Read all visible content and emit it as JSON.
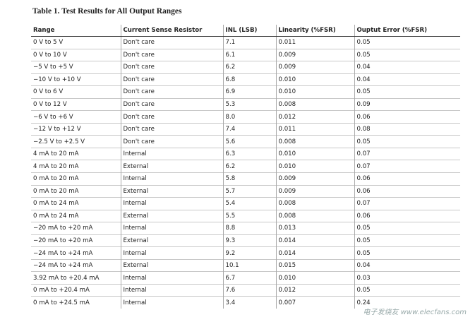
{
  "title": "Table 1. Test Results for All Output Ranges",
  "table": {
    "header": [
      "Range",
      "Current Sense Resistor",
      "INL (LSB)",
      "Linearity (%FSR)",
      "Ouptut Error (%FSR)"
    ],
    "rows": [
      [
        "0 V to 5 V",
        "Don't care",
        "7.1",
        "0.011",
        "0.05"
      ],
      [
        "0 V to 10 V",
        "Don't care",
        "6.1",
        "0.009",
        "0.05"
      ],
      [
        "−5 V to +5 V",
        "Don't care",
        "6.2",
        "0.009",
        "0.04"
      ],
      [
        "−10 V to +10 V",
        "Don't care",
        "6.8",
        "0.010",
        "0.04"
      ],
      [
        "0 V to 6 V",
        "Don't care",
        "6.9",
        "0.010",
        "0.05"
      ],
      [
        "0 V to 12 V",
        "Don't care",
        "5.3",
        "0.008",
        "0.09"
      ],
      [
        "−6 V to +6 V",
        "Don't care",
        "8.0",
        "0.012",
        "0.06"
      ],
      [
        "−12 V to +12 V",
        "Don't care",
        "7.4",
        "0.011",
        "0.08"
      ],
      [
        "−2.5 V to +2.5 V",
        "Don't care",
        "5.6",
        "0.008",
        "0.05"
      ],
      [
        "4 mA to 20 mA",
        "Internal",
        "6.3",
        "0.010",
        "0.07"
      ],
      [
        "4 mA to 20 mA",
        "External",
        "6.2",
        "0.010",
        "0.07"
      ],
      [
        "0 mA to 20 mA",
        "Internal",
        "5.8",
        "0.009",
        "0.06"
      ],
      [
        "0 mA to 20 mA",
        "External",
        "5.7",
        "0.009",
        "0.06"
      ],
      [
        "0 mA to 24 mA",
        "Internal",
        "5.4",
        "0.008",
        "0.07"
      ],
      [
        "0 mA to 24 mA",
        "External",
        "5.5",
        "0.008",
        "0.06"
      ],
      [
        "−20 mA to +20 mA",
        "Internal",
        "8.8",
        "0.013",
        "0.05"
      ],
      [
        "−20 mA to +20 mA",
        "External",
        "9.3",
        "0.014",
        "0.05"
      ],
      [
        "−24 mA to +24 mA",
        "Internal",
        "9.2",
        "0.014",
        "0.05"
      ],
      [
        "−24 mA to +24 mA",
        "External",
        "10.1",
        "0.015",
        "0.04"
      ],
      [
        "3.92 mA to +20.4 mA",
        "Internal",
        "6.7",
        "0.010",
        "0.03"
      ],
      [
        "0 mA to +20.4 mA",
        "Internal",
        "7.6",
        "0.012",
        "0.05"
      ],
      [
        "0 mA to +24.5 mA",
        "Internal",
        "3.4",
        "0.007",
        "0.24"
      ]
    ]
  },
  "watermark": "电子发烧友 www.elecfans.com"
}
